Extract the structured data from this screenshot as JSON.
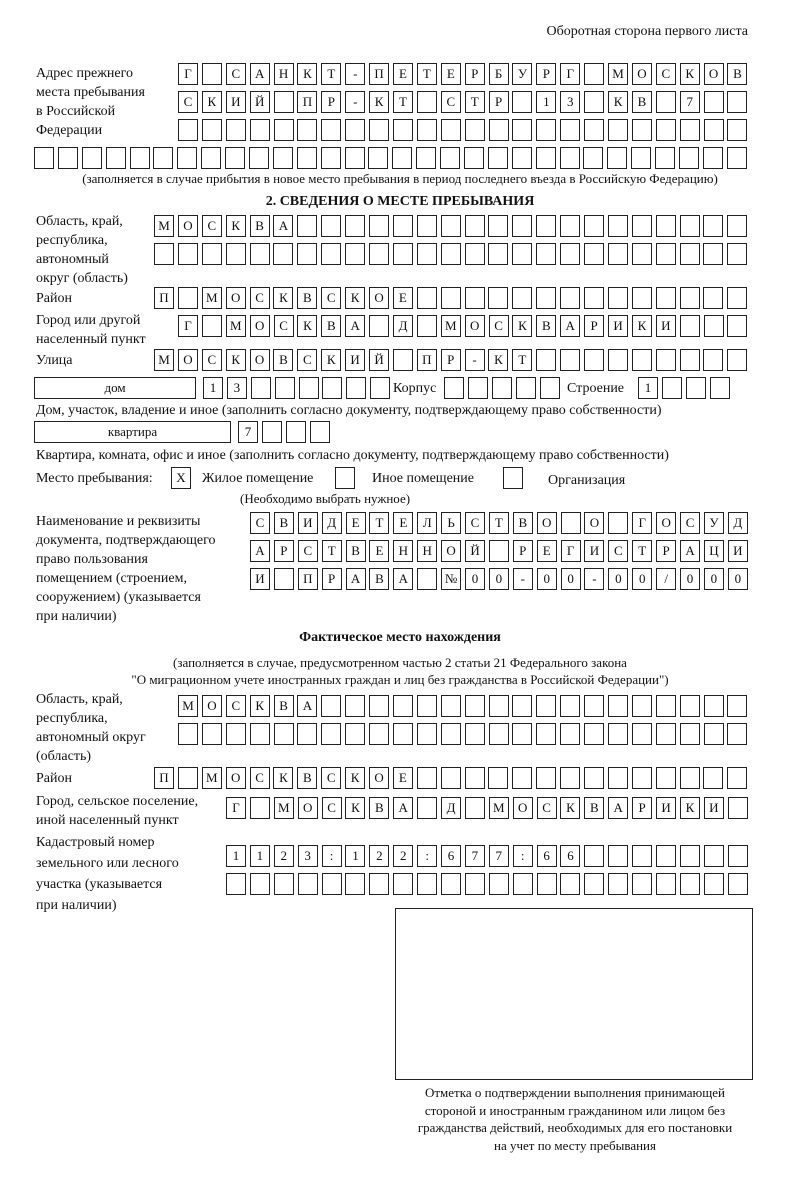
{
  "header": "Оборотная сторона первого листа",
  "prev_address": {
    "label": [
      "Адрес прежнего",
      "места пребывания",
      "в Российской",
      "Федерации"
    ],
    "rows": [
      "Г САНКТ-ПЕТЕРБУРГ МОСКОВ",
      "СКИЙ ПР-КТ СТР 13 КВ 7",
      "",
      ""
    ],
    "note": "(заполняется в случае прибытия в новое место пребывания в период последнего въезда в Российскую Федерацию)"
  },
  "section2": {
    "title": "2. СВЕДЕНИЯ О МЕСТЕ ПРЕБЫВАНИЯ",
    "region_label": [
      "Область, край,",
      "республика,",
      "автономный",
      "округ (область)"
    ],
    "region_rows": [
      "МОСКВА",
      ""
    ],
    "district_label": "Район",
    "district": "П МОСКВСКОЕ",
    "city_label": [
      "Город или другой",
      "населенный пункт"
    ],
    "city": "Г МОСКВА Д МОСКВАРИКИ",
    "street_label": "Улица",
    "street": "МОСКОВСКИЙ ПР-КТ",
    "house_type": "дом",
    "house": "13",
    "korpus_label": "Корпус",
    "korpus": "",
    "building_label": "Строение",
    "building": "1",
    "house_note": "Дом, участок, владение и иное (заполнить согласно документу, подтверждающему право собственности)",
    "flat_type": "квартира",
    "flat": "7",
    "flat_note": "Квартира, комната, офис и иное (заполнить согласно документу, подтверждающему право собственности)",
    "place_label": "Место пребывания:",
    "place_options": [
      {
        "label": "Жилое помещение",
        "mark": "Х"
      },
      {
        "label": "Иное помещение",
        "mark": ""
      },
      {
        "label": "Организация",
        "mark": ""
      }
    ],
    "place_note": "(Необходимо выбрать нужное)",
    "doc_label": [
      "Наименование и реквизиты",
      "документа, подтверждающего",
      "право пользования",
      "помещением (строением,",
      "сооружением) (указывается",
      "при наличии)"
    ],
    "doc_rows": [
      "СВИДЕТЕЛЬСТВО О ГОСУД",
      "АРСТВЕННОЙ РЕГИСТРАЦИ",
      "И ПРАВА №00-00-00/000"
    ]
  },
  "actual": {
    "title": "Фактическое место нахождения",
    "note1": "(заполняется в случае, предусмотренном частью 2 статьи 21 Федерального закона",
    "note2": "\"О миграционном учете иностранных граждан и лиц без гражданства в Российской Федерации\")",
    "region_label": [
      "Область, край,",
      "республика,",
      "автономный округ",
      "(область)"
    ],
    "region_rows": [
      "МОСКВА",
      ""
    ],
    "district_label": "Район",
    "district": "П МОСКВСКОЕ",
    "city_label": [
      "Город, сельское поселение,",
      "иной населенный пункт"
    ],
    "city": "Г МОСКВА Д МОСКВАРИКИ",
    "cadastral_label": [
      "Кадастровый номер",
      "земельного или лесного",
      "участка (указывается",
      "при наличии)"
    ],
    "cadastral_rows": [
      "1123:122:677:66",
      ""
    ]
  },
  "stamp_caption": [
    "Отметка о подтверждении выполнения принимающей",
    "стороной и иностранным гражданином или лицом без",
    "гражданства действий, необходимых для его постановки",
    "на учет по месту пребывания"
  ]
}
